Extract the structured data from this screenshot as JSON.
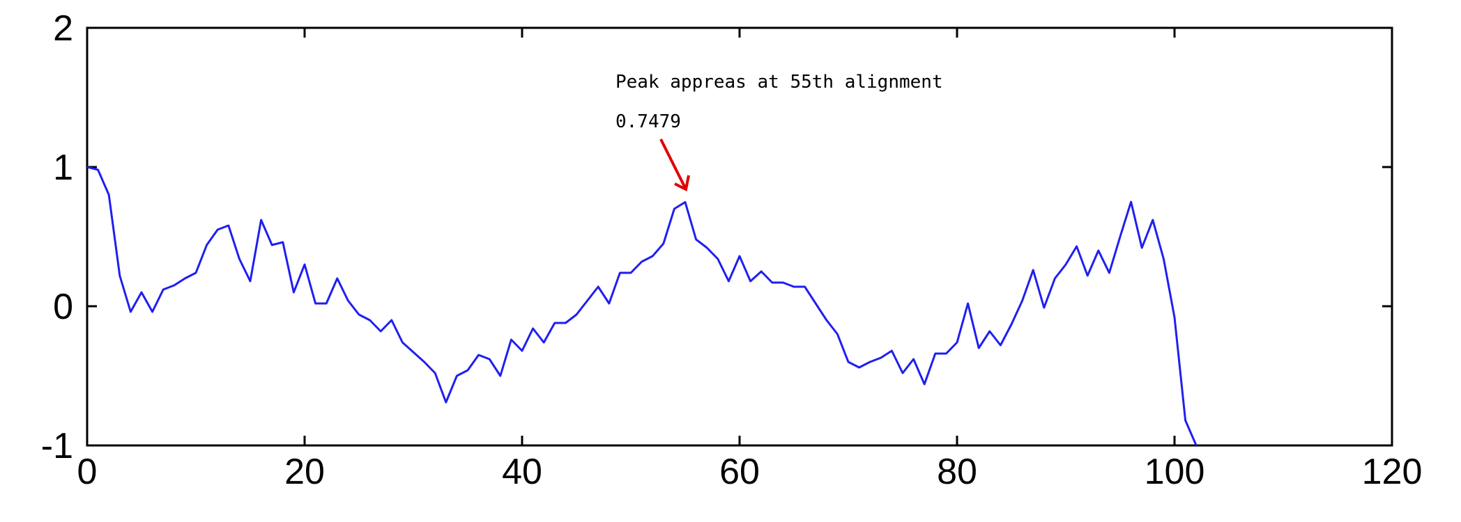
{
  "chart_data": {
    "type": "line",
    "title": "",
    "xlabel": "",
    "ylabel": "",
    "xlim": [
      0,
      120
    ],
    "ylim": [
      -1,
      2
    ],
    "xticks": [
      0,
      20,
      40,
      60,
      80,
      100,
      120
    ],
    "yticks": [
      -1,
      0,
      1,
      2
    ],
    "grid": false,
    "series": [
      {
        "color": "#1f1ff0",
        "x": [
          0,
          1,
          2,
          3,
          4,
          5,
          6,
          7,
          8,
          9,
          10,
          11,
          12,
          13,
          14,
          15,
          16,
          17,
          18,
          19,
          20,
          21,
          22,
          23,
          24,
          25,
          26,
          27,
          28,
          29,
          30,
          31,
          32,
          33,
          34,
          35,
          36,
          37,
          38,
          39,
          40,
          41,
          42,
          43,
          44,
          45,
          46,
          47,
          48,
          49,
          50,
          51,
          52,
          53,
          54,
          55,
          56,
          57,
          58,
          59,
          60,
          61,
          62,
          63,
          64,
          65,
          66,
          67,
          68,
          69,
          70,
          71,
          72,
          73,
          74,
          75,
          76,
          77,
          78,
          79,
          80,
          81,
          82,
          83,
          84,
          85,
          86,
          87,
          88,
          89,
          90,
          91,
          92,
          93,
          94,
          95,
          96,
          97,
          98,
          99,
          100,
          101,
          102
        ],
        "y": [
          1.0,
          0.98,
          0.8,
          0.22,
          -0.04,
          0.1,
          -0.04,
          0.12,
          0.15,
          0.2,
          0.24,
          0.44,
          0.55,
          0.58,
          0.34,
          0.18,
          0.62,
          0.44,
          0.46,
          0.1,
          0.3,
          0.02,
          0.02,
          0.2,
          0.04,
          -0.06,
          -0.1,
          -0.18,
          -0.1,
          -0.26,
          -0.33,
          -0.4,
          -0.48,
          -0.69,
          -0.5,
          -0.46,
          -0.35,
          -0.38,
          -0.5,
          -0.24,
          -0.32,
          -0.16,
          -0.26,
          -0.12,
          -0.12,
          -0.06,
          0.04,
          0.14,
          0.02,
          0.24,
          0.24,
          0.32,
          0.36,
          0.45,
          0.7,
          0.7479,
          0.48,
          0.42,
          0.34,
          0.18,
          0.36,
          0.18,
          0.25,
          0.17,
          0.17,
          0.14,
          0.14,
          0.02,
          -0.1,
          -0.2,
          -0.4,
          -0.44,
          -0.4,
          -0.37,
          -0.32,
          -0.48,
          -0.38,
          -0.56,
          -0.34,
          -0.34,
          -0.26,
          0.02,
          -0.3,
          -0.18,
          -0.28,
          -0.13,
          0.04,
          0.26,
          -0.01,
          0.2,
          0.3,
          0.43,
          0.22,
          0.4,
          0.24,
          0.5,
          0.75,
          0.42,
          0.62,
          0.34,
          -0.08,
          -0.82,
          -1.0
        ]
      }
    ],
    "annotations": [
      {
        "text": "Peak appreas at 55th alignment",
        "x": 55,
        "y": 0.7479
      },
      {
        "text": "0.7479",
        "x": 55,
        "y": 0.7479
      }
    ],
    "arrow_color": "#e00000"
  }
}
